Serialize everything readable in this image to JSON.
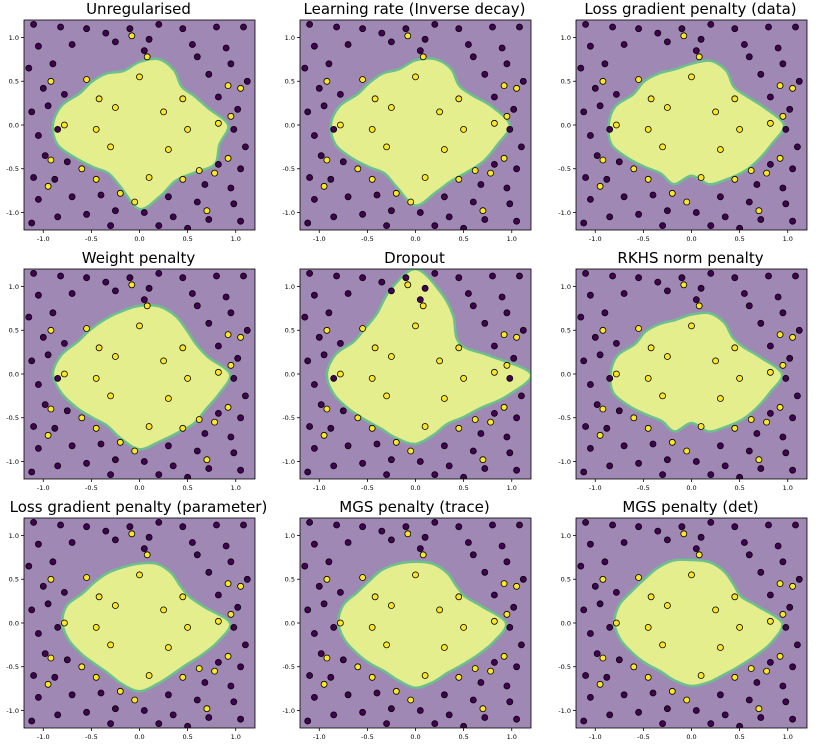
{
  "figure": {
    "region_colors": {
      "outside": "#9f89b4",
      "inside": "#e5ee8c",
      "edge": "#6cc08f"
    },
    "point_colors": {
      "class0": "#440154",
      "class1": "#fde725",
      "stroke": "#000000"
    }
  },
  "chart_data": [
    {
      "type": "scatter",
      "title": "Unregularised",
      "xlim": [
        -1.2,
        1.2
      ],
      "ylim": [
        -1.2,
        1.2
      ],
      "xticks": [
        "-1.0",
        "-0.5",
        "0.0",
        "0.5",
        "1.0"
      ],
      "yticks": [
        "1.0",
        "0.5",
        "0.0",
        "-0.5",
        "-1.0"
      ],
      "boundary_radii": [
        0.72,
        0.78,
        0.72,
        0.62,
        0.66,
        0.74,
        0.92,
        0.86,
        0.9,
        0.78,
        0.74,
        0.84,
        0.96,
        0.74,
        0.64,
        0.68,
        0.76,
        0.88,
        0.9,
        0.84,
        0.72,
        0.7,
        0.68,
        0.64
      ]
    },
    {
      "type": "scatter",
      "title": "Learning rate (Inverse decay)",
      "xlim": [
        -1.2,
        1.2
      ],
      "ylim": [
        -1.2,
        1.2
      ],
      "xticks": [
        "-1.0",
        "-0.5",
        "0.0",
        "0.5",
        "1.0"
      ],
      "yticks": [
        "1.0",
        "0.5",
        "0.0",
        "-0.5",
        "-1.0"
      ],
      "boundary_radii": [
        0.74,
        0.78,
        0.74,
        0.64,
        0.68,
        0.82,
        0.98,
        0.88,
        0.82,
        0.76,
        0.74,
        0.8,
        0.92,
        0.74,
        0.64,
        0.68,
        0.76,
        0.86,
        0.88,
        0.82,
        0.7,
        0.68,
        0.68,
        0.66
      ]
    },
    {
      "type": "scatter",
      "title": "Loss gradient penalty (data)",
      "xlim": [
        -1.2,
        1.2
      ],
      "ylim": [
        -1.2,
        1.2
      ],
      "xticks": [
        "-1.0",
        "-0.5",
        "0.0",
        "0.5",
        "1.0"
      ],
      "yticks": [
        "1.0",
        "0.5",
        "0.0",
        "-0.5",
        "-1.0"
      ],
      "boundary_radii": [
        0.7,
        0.76,
        0.72,
        0.62,
        0.66,
        0.78,
        0.96,
        0.86,
        0.8,
        0.76,
        0.72,
        0.7,
        0.58,
        0.7,
        0.64,
        0.68,
        0.76,
        0.86,
        0.86,
        0.82,
        0.7,
        0.7,
        0.68,
        0.66
      ]
    },
    {
      "type": "scatter",
      "title": "Weight penalty",
      "xlim": [
        -1.2,
        1.2
      ],
      "ylim": [
        -1.2,
        1.2
      ],
      "xticks": [
        "-1.0",
        "-0.5",
        "0.0",
        "0.5",
        "1.0"
      ],
      "yticks": [
        "1.0",
        "0.5",
        "0.0",
        "-0.5",
        "-1.0"
      ],
      "boundary_radii": [
        0.78,
        0.8,
        0.76,
        0.7,
        0.68,
        0.74,
        0.94,
        0.86,
        0.8,
        0.8,
        0.78,
        0.8,
        0.86,
        0.76,
        0.68,
        0.7,
        0.76,
        0.84,
        0.9,
        0.84,
        0.74,
        0.72,
        0.72,
        0.74
      ]
    },
    {
      "type": "scatter",
      "title": "Dropout",
      "xlim": [
        -1.2,
        1.2
      ],
      "ylim": [
        -1.2,
        1.2
      ],
      "xticks": [
        "-1.0",
        "-0.5",
        "0.0",
        "0.5",
        "1.0"
      ],
      "yticks": [
        "1.0",
        "0.5",
        "0.0",
        "-0.5",
        "-1.0"
      ],
      "boundary_radii": [
        1.2,
        0.98,
        0.78,
        0.6,
        0.6,
        0.8,
        1.2,
        0.98,
        0.78,
        0.7,
        0.66,
        0.72,
        0.8,
        0.76,
        0.72,
        0.74,
        0.8,
        0.88,
        0.92,
        0.86,
        0.74,
        0.74,
        0.8,
        1.0
      ]
    },
    {
      "type": "scatter",
      "title": "RKHS norm penalty",
      "xlim": [
        -1.2,
        1.2
      ],
      "ylim": [
        -1.2,
        1.2
      ],
      "xticks": [
        "-1.0",
        "-0.5",
        "0.0",
        "0.5",
        "1.0"
      ],
      "yticks": [
        "1.0",
        "0.5",
        "0.0",
        "-0.5",
        "-1.0"
      ],
      "boundary_radii": [
        0.68,
        0.72,
        0.68,
        0.6,
        0.62,
        0.74,
        0.94,
        0.84,
        0.78,
        0.74,
        0.7,
        0.68,
        0.56,
        0.68,
        0.62,
        0.66,
        0.74,
        0.84,
        0.84,
        0.8,
        0.68,
        0.68,
        0.66,
        0.64
      ]
    },
    {
      "type": "scatter",
      "title": "Loss gradient penalty (parameter)",
      "xlim": [
        -1.2,
        1.2
      ],
      "ylim": [
        -1.2,
        1.2
      ],
      "xticks": [
        "-1.0",
        "-0.5",
        "0.0",
        "0.5",
        "1.0"
      ],
      "yticks": [
        "1.0",
        "0.5",
        "0.0",
        "-0.5",
        "-1.0"
      ],
      "boundary_radii": [
        0.68,
        0.7,
        0.66,
        0.6,
        0.6,
        0.7,
        0.94,
        0.84,
        0.74,
        0.68,
        0.68,
        0.72,
        0.78,
        0.72,
        0.66,
        0.66,
        0.7,
        0.76,
        0.8,
        0.78,
        0.68,
        0.66,
        0.66,
        0.66
      ]
    },
    {
      "type": "scatter",
      "title": "MGS penalty (trace)",
      "xlim": [
        -1.2,
        1.2
      ],
      "ylim": [
        -1.2,
        1.2
      ],
      "xticks": [
        "-1.0",
        "-0.5",
        "0.0",
        "0.5",
        "1.0"
      ],
      "yticks": [
        "1.0",
        "0.5",
        "0.0",
        "-0.5",
        "-1.0"
      ],
      "boundary_radii": [
        0.7,
        0.7,
        0.66,
        0.6,
        0.6,
        0.72,
        0.94,
        0.84,
        0.74,
        0.68,
        0.66,
        0.7,
        0.74,
        0.68,
        0.64,
        0.66,
        0.7,
        0.76,
        0.8,
        0.78,
        0.7,
        0.68,
        0.7,
        0.7
      ]
    },
    {
      "type": "scatter",
      "title": "MGS penalty (det)",
      "xlim": [
        -1.2,
        1.2
      ],
      "ylim": [
        -1.2,
        1.2
      ],
      "xticks": [
        "-1.0",
        "-0.5",
        "0.0",
        "0.5",
        "1.0"
      ],
      "yticks": [
        "1.0",
        "0.5",
        "0.0",
        "-0.5",
        "-1.0"
      ],
      "boundary_radii": [
        0.72,
        0.72,
        0.68,
        0.62,
        0.6,
        0.72,
        0.94,
        0.86,
        0.76,
        0.7,
        0.68,
        0.7,
        0.72,
        0.68,
        0.64,
        0.66,
        0.7,
        0.76,
        0.8,
        0.78,
        0.72,
        0.7,
        0.72,
        0.74
      ]
    }
  ],
  "points": {
    "class0": [
      [
        -1.1,
        1.15
      ],
      [
        -0.82,
        1.12
      ],
      [
        -0.55,
        1.1
      ],
      [
        -0.35,
        1.05
      ],
      [
        -0.1,
        1.1
      ],
      [
        0.2,
        1.15
      ],
      [
        0.45,
        1.1
      ],
      [
        0.8,
        1.12
      ],
      [
        1.08,
        1.12
      ],
      [
        -1.05,
        0.9
      ],
      [
        -0.7,
        0.92
      ],
      [
        -0.25,
        0.95
      ],
      [
        0.1,
        0.98
      ],
      [
        0.55,
        0.92
      ],
      [
        0.9,
        0.88
      ],
      [
        -1.15,
        0.65
      ],
      [
        -0.9,
        0.7
      ],
      [
        0.05,
        0.85
      ],
      [
        0.6,
        0.78
      ],
      [
        0.95,
        0.7
      ],
      [
        -1.0,
        0.42
      ],
      [
        -0.78,
        0.35
      ],
      [
        0.72,
        0.58
      ],
      [
        1.12,
        0.5
      ],
      [
        -1.12,
        0.15
      ],
      [
        -0.95,
        0.22
      ],
      [
        0.82,
        0.32
      ],
      [
        1.02,
        0.18
      ],
      [
        -1.05,
        -0.12
      ],
      [
        -0.85,
        -0.05
      ],
      [
        0.98,
        -0.05
      ],
      [
        1.1,
        -0.25
      ],
      [
        -0.98,
        -0.35
      ],
      [
        -0.75,
        -0.42
      ],
      [
        0.82,
        -0.45
      ],
      [
        1.05,
        -0.5
      ],
      [
        -1.1,
        -0.6
      ],
      [
        -0.88,
        -0.62
      ],
      [
        0.68,
        -0.68
      ],
      [
        0.95,
        -0.72
      ],
      [
        -1.05,
        -0.85
      ],
      [
        -0.7,
        -0.82
      ],
      [
        -0.4,
        -0.8
      ],
      [
        0.3,
        -0.82
      ],
      [
        0.6,
        -0.88
      ],
      [
        0.98,
        -0.9
      ],
      [
        -0.85,
        -1.05
      ],
      [
        -0.55,
        -1.02
      ],
      [
        -0.25,
        -0.98
      ],
      [
        0.05,
        -1.0
      ],
      [
        0.35,
        -1.05
      ],
      [
        0.72,
        -1.08
      ],
      [
        1.05,
        -1.1
      ],
      [
        -1.12,
        -1.12
      ],
      [
        -0.3,
        -1.15
      ],
      [
        0.2,
        -1.15
      ],
      [
        0.5,
        -1.18
      ]
    ],
    "class1": [
      [
        -0.08,
        1.02
      ],
      [
        0.08,
        0.78
      ],
      [
        -0.92,
        0.5
      ],
      [
        -0.55,
        0.52
      ],
      [
        0.92,
        0.45
      ],
      [
        1.05,
        0.42
      ],
      [
        -0.42,
        0.3
      ],
      [
        0.45,
        0.3
      ],
      [
        0.0,
        0.55
      ],
      [
        -0.25,
        0.2
      ],
      [
        0.25,
        0.15
      ],
      [
        -0.78,
        0.0
      ],
      [
        -0.45,
        -0.05
      ],
      [
        0.5,
        -0.05
      ],
      [
        0.82,
        0.02
      ],
      [
        0.95,
        0.1
      ],
      [
        -0.3,
        -0.25
      ],
      [
        0.3,
        -0.28
      ],
      [
        -0.92,
        -0.4
      ],
      [
        0.92,
        -0.38
      ],
      [
        -0.6,
        -0.5
      ],
      [
        0.62,
        -0.52
      ],
      [
        -0.95,
        -0.7
      ],
      [
        -0.45,
        -0.62
      ],
      [
        0.1,
        -0.6
      ],
      [
        0.45,
        -0.62
      ],
      [
        0.78,
        -0.55
      ],
      [
        -0.2,
        -0.78
      ],
      [
        -0.05,
        -0.88
      ],
      [
        0.7,
        -0.98
      ]
    ]
  }
}
